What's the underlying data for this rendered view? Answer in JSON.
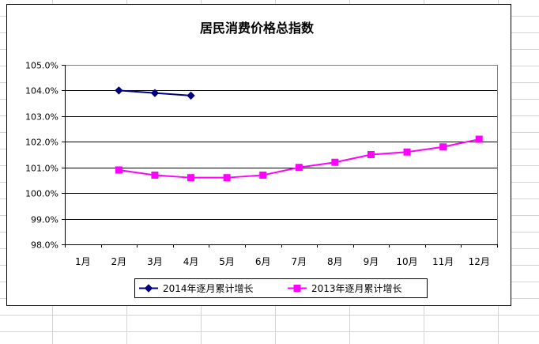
{
  "chart_data": {
    "type": "line",
    "title": "居民消费价格总指数",
    "xlabel": "",
    "ylabel": "",
    "categories": [
      "1月",
      "2月",
      "3月",
      "4月",
      "5月",
      "6月",
      "7月",
      "8月",
      "9月",
      "10月",
      "11月",
      "12月"
    ],
    "ylim": [
      98.0,
      105.0
    ],
    "yticks": [
      "98.0%",
      "99.0%",
      "100.0%",
      "101.0%",
      "102.0%",
      "103.0%",
      "104.0%",
      "105.0%"
    ],
    "grid": true,
    "legend_position": "bottom",
    "series": [
      {
        "name": "2014年逐月累计增长",
        "color": "#000080",
        "marker": "diamond",
        "values": [
          null,
          104.0,
          103.9,
          103.8,
          null,
          null,
          null,
          null,
          null,
          null,
          null,
          null
        ]
      },
      {
        "name": "2013年逐月累计增长",
        "color": "#FF00FF",
        "marker": "square",
        "values": [
          null,
          100.9,
          100.7,
          100.6,
          100.6,
          100.7,
          101.0,
          101.2,
          101.5,
          101.6,
          101.8,
          102.1
        ]
      }
    ]
  }
}
